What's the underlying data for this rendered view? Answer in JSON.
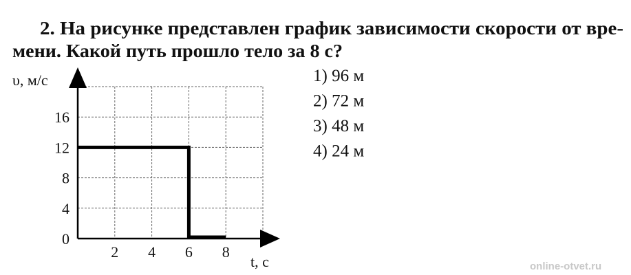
{
  "question": {
    "line1": "2. На рисунке представлен график зависимости скорости от вре-",
    "line2": "мени. Какой путь прошло тело за 8 с?"
  },
  "answers": [
    "1) 96 м",
    "2) 72 м",
    "3) 48 м",
    "4) 24 м"
  ],
  "watermark": "online-otvet.ru",
  "chart_data": {
    "type": "line",
    "title": "",
    "xlabel": "t, c",
    "ylabel": "υ, м/с",
    "xlim": [
      0,
      10
    ],
    "ylim": [
      0,
      20
    ],
    "grid": true,
    "x_ticks": [
      2,
      4,
      6,
      8
    ],
    "y_ticks": [
      0,
      4,
      8,
      12,
      16
    ],
    "series": [
      {
        "x": [
          0,
          6,
          6,
          8
        ],
        "y": [
          12,
          12,
          0,
          0
        ]
      }
    ]
  }
}
